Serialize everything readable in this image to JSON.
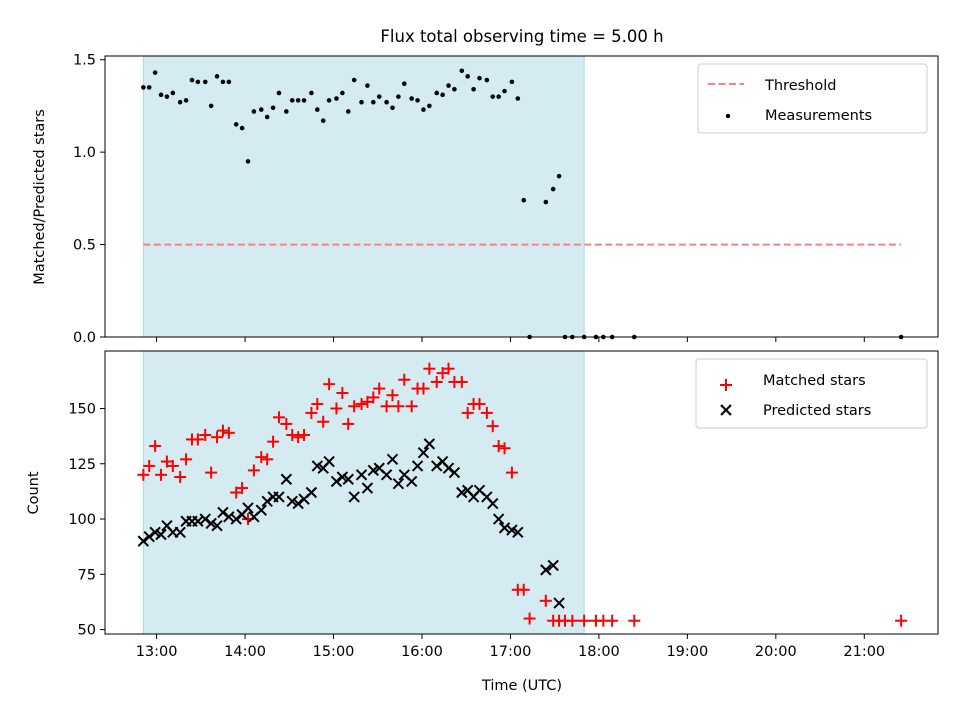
{
  "title": "Flux total observing time = 5.00 h",
  "colors": {
    "observing_window": "#add8e6",
    "threshold": "#ff7f7f",
    "measurements": "#000000",
    "matched": "#ff0000",
    "predicted": "#000000"
  },
  "chart_data": [
    {
      "type": "scatter",
      "ylabel": "Matched/Predicted stars",
      "xlabel": "",
      "xlim": [
        "12:25",
        "21:50"
      ],
      "ylim": [
        0,
        1.52
      ],
      "yticks": [
        "0.0",
        "0.5",
        "1.0",
        "1.5"
      ],
      "shaded_span": [
        "12:51",
        "17:50"
      ],
      "legend_position": "upper right",
      "legend": [
        "Threshold",
        "Measurements"
      ],
      "threshold": {
        "name": "Threshold",
        "y": 0.5,
        "x_range": [
          "12:51",
          "21:25"
        ],
        "style": "dashed"
      },
      "series": [
        {
          "name": "Measurements",
          "marker": "dot",
          "points": [
            [
              "12:51",
              1.35
            ],
            [
              "12:55",
              1.35
            ],
            [
              "12:59",
              1.43
            ],
            [
              "13:03",
              1.31
            ],
            [
              "13:07",
              1.3
            ],
            [
              "13:11",
              1.32
            ],
            [
              "13:16",
              1.27
            ],
            [
              "13:20",
              1.28
            ],
            [
              "13:24",
              1.39
            ],
            [
              "13:28",
              1.38
            ],
            [
              "13:33",
              1.38
            ],
            [
              "13:37",
              1.25
            ],
            [
              "13:41",
              1.41
            ],
            [
              "13:45",
              1.38
            ],
            [
              "13:49",
              1.38
            ],
            [
              "13:54",
              1.15
            ],
            [
              "13:58",
              1.13
            ],
            [
              "14:02",
              0.95
            ],
            [
              "14:06",
              1.22
            ],
            [
              "14:11",
              1.23
            ],
            [
              "14:15",
              1.19
            ],
            [
              "14:19",
              1.24
            ],
            [
              "14:23",
              1.32
            ],
            [
              "14:28",
              1.22
            ],
            [
              "14:32",
              1.28
            ],
            [
              "14:36",
              1.28
            ],
            [
              "14:40",
              1.28
            ],
            [
              "14:45",
              1.32
            ],
            [
              "14:49",
              1.23
            ],
            [
              "14:53",
              1.17
            ],
            [
              "14:57",
              1.28
            ],
            [
              "15:02",
              1.29
            ],
            [
              "15:06",
              1.32
            ],
            [
              "15:10",
              1.22
            ],
            [
              "15:14",
              1.39
            ],
            [
              "15:19",
              1.27
            ],
            [
              "15:23",
              1.36
            ],
            [
              "15:27",
              1.27
            ],
            [
              "15:31",
              1.3
            ],
            [
              "15:36",
              1.27
            ],
            [
              "15:40",
              1.24
            ],
            [
              "15:44",
              1.3
            ],
            [
              "15:48",
              1.37
            ],
            [
              "15:53",
              1.29
            ],
            [
              "15:57",
              1.28
            ],
            [
              "16:01",
              1.23
            ],
            [
              "16:05",
              1.25
            ],
            [
              "16:10",
              1.32
            ],
            [
              "16:14",
              1.31
            ],
            [
              "16:18",
              1.36
            ],
            [
              "16:22",
              1.34
            ],
            [
              "16:27",
              1.44
            ],
            [
              "16:31",
              1.41
            ],
            [
              "16:35",
              1.34
            ],
            [
              "16:39",
              1.4
            ],
            [
              "16:44",
              1.39
            ],
            [
              "16:48",
              1.3
            ],
            [
              "16:52",
              1.3
            ],
            [
              "16:56",
              1.33
            ],
            [
              "17:01",
              1.38
            ],
            [
              "17:05",
              1.29
            ],
            [
              "17:09",
              0.74
            ],
            [
              "17:24",
              0.73
            ],
            [
              "17:29",
              0.8
            ],
            [
              "17:33",
              0.87
            ],
            [
              "17:13",
              0.0
            ],
            [
              "17:37",
              0.0
            ],
            [
              "17:42",
              0.0
            ],
            [
              "17:50",
              0.0
            ],
            [
              "17:58",
              0.0
            ],
            [
              "18:03",
              0.0
            ],
            [
              "18:09",
              0.0
            ],
            [
              "18:24",
              0.0
            ],
            [
              "21:25",
              0.0
            ]
          ]
        }
      ]
    },
    {
      "type": "scatter",
      "ylabel": "Count",
      "xlabel": "Time (UTC)",
      "xlim": [
        "12:25",
        "21:50"
      ],
      "ylim": [
        48,
        176
      ],
      "yticks": [
        "50",
        "75",
        "100",
        "125",
        "150"
      ],
      "xticks": [
        "13:00",
        "14:00",
        "15:00",
        "16:00",
        "17:00",
        "18:00",
        "19:00",
        "20:00",
        "21:00"
      ],
      "shaded_span": [
        "12:51",
        "17:50"
      ],
      "legend_position": "upper right",
      "legend": [
        "Matched stars",
        "Predicted stars"
      ],
      "series": [
        {
          "name": "Matched stars",
          "marker": "plus",
          "points": [
            [
              "12:51",
              120
            ],
            [
              "12:55",
              124
            ],
            [
              "12:59",
              133
            ],
            [
              "13:03",
              120
            ],
            [
              "13:07",
              126
            ],
            [
              "13:11",
              124
            ],
            [
              "13:16",
              119
            ],
            [
              "13:20",
              127
            ],
            [
              "13:24",
              136
            ],
            [
              "13:28",
              136
            ],
            [
              "13:33",
              138
            ],
            [
              "13:37",
              121
            ],
            [
              "13:41",
              137
            ],
            [
              "13:45",
              140
            ],
            [
              "13:49",
              139
            ],
            [
              "13:54",
              112
            ],
            [
              "13:58",
              114
            ],
            [
              "14:02",
              100
            ],
            [
              "14:06",
              122
            ],
            [
              "14:11",
              128
            ],
            [
              "14:15",
              127
            ],
            [
              "14:19",
              135
            ],
            [
              "14:23",
              146
            ],
            [
              "14:28",
              143
            ],
            [
              "14:32",
              138
            ],
            [
              "14:36",
              137
            ],
            [
              "14:40",
              138
            ],
            [
              "14:45",
              148
            ],
            [
              "14:49",
              152
            ],
            [
              "14:53",
              144
            ],
            [
              "14:57",
              161
            ],
            [
              "15:02",
              150
            ],
            [
              "15:06",
              157
            ],
            [
              "15:10",
              143
            ],
            [
              "15:14",
              151
            ],
            [
              "15:19",
              152
            ],
            [
              "15:23",
              153
            ],
            [
              "15:27",
              155
            ],
            [
              "15:31",
              159
            ],
            [
              "15:36",
              151
            ],
            [
              "15:40",
              156
            ],
            [
              "15:44",
              151
            ],
            [
              "15:48",
              163
            ],
            [
              "15:53",
              151
            ],
            [
              "15:57",
              159
            ],
            [
              "16:01",
              159
            ],
            [
              "16:05",
              168
            ],
            [
              "16:10",
              162
            ],
            [
              "16:14",
              166
            ],
            [
              "16:18",
              168
            ],
            [
              "16:22",
              162
            ],
            [
              "16:27",
              162
            ],
            [
              "16:31",
              148
            ],
            [
              "16:35",
              152
            ],
            [
              "16:39",
              152
            ],
            [
              "16:44",
              148
            ],
            [
              "16:48",
              142
            ],
            [
              "16:52",
              133
            ],
            [
              "16:56",
              132
            ],
            [
              "17:01",
              121
            ],
            [
              "17:05",
              68
            ],
            [
              "17:09",
              68
            ],
            [
              "17:13",
              55
            ],
            [
              "17:24",
              63
            ],
            [
              "17:29",
              54
            ],
            [
              "17:33",
              54
            ],
            [
              "17:37",
              54
            ],
            [
              "17:42",
              54
            ],
            [
              "17:50",
              54
            ],
            [
              "17:58",
              54
            ],
            [
              "18:03",
              54
            ],
            [
              "18:09",
              54
            ],
            [
              "18:24",
              54
            ],
            [
              "21:25",
              54
            ]
          ]
        },
        {
          "name": "Predicted stars",
          "marker": "x",
          "points": [
            [
              "12:51",
              90
            ],
            [
              "12:55",
              92
            ],
            [
              "12:59",
              94
            ],
            [
              "13:03",
              93
            ],
            [
              "13:07",
              97
            ],
            [
              "13:11",
              94
            ],
            [
              "13:16",
              94
            ],
            [
              "13:20",
              99
            ],
            [
              "13:24",
              99
            ],
            [
              "13:28",
              99
            ],
            [
              "13:33",
              100
            ],
            [
              "13:37",
              98
            ],
            [
              "13:41",
              97
            ],
            [
              "13:45",
              103
            ],
            [
              "13:49",
              101
            ],
            [
              "13:54",
              100
            ],
            [
              "13:58",
              102
            ],
            [
              "14:02",
              105
            ],
            [
              "14:06",
              101
            ],
            [
              "14:11",
              104
            ],
            [
              "14:15",
              108
            ],
            [
              "14:19",
              110
            ],
            [
              "14:23",
              110
            ],
            [
              "14:28",
              118
            ],
            [
              "14:32",
              108
            ],
            [
              "14:36",
              107
            ],
            [
              "14:40",
              109
            ],
            [
              "14:45",
              112
            ],
            [
              "14:49",
              124
            ],
            [
              "14:53",
              123
            ],
            [
              "14:57",
              126
            ],
            [
              "15:02",
              117
            ],
            [
              "15:06",
              119
            ],
            [
              "15:10",
              118
            ],
            [
              "15:14",
              110
            ],
            [
              "15:19",
              120
            ],
            [
              "15:23",
              114
            ],
            [
              "15:27",
              122
            ],
            [
              "15:31",
              123
            ],
            [
              "15:36",
              120
            ],
            [
              "15:40",
              127
            ],
            [
              "15:44",
              116
            ],
            [
              "15:48",
              120
            ],
            [
              "15:53",
              117
            ],
            [
              "15:57",
              124
            ],
            [
              "16:01",
              130
            ],
            [
              "16:05",
              134
            ],
            [
              "16:10",
              124
            ],
            [
              "16:14",
              126
            ],
            [
              "16:18",
              123
            ],
            [
              "16:22",
              121
            ],
            [
              "16:27",
              112
            ],
            [
              "16:31",
              113
            ],
            [
              "16:35",
              110
            ],
            [
              "16:39",
              113
            ],
            [
              "16:44",
              110
            ],
            [
              "16:48",
              107
            ],
            [
              "16:52",
              100
            ],
            [
              "16:56",
              96
            ],
            [
              "17:01",
              95
            ],
            [
              "17:05",
              94
            ],
            [
              "17:24",
              77
            ],
            [
              "17:29",
              79
            ],
            [
              "17:33",
              62
            ]
          ]
        }
      ]
    }
  ]
}
